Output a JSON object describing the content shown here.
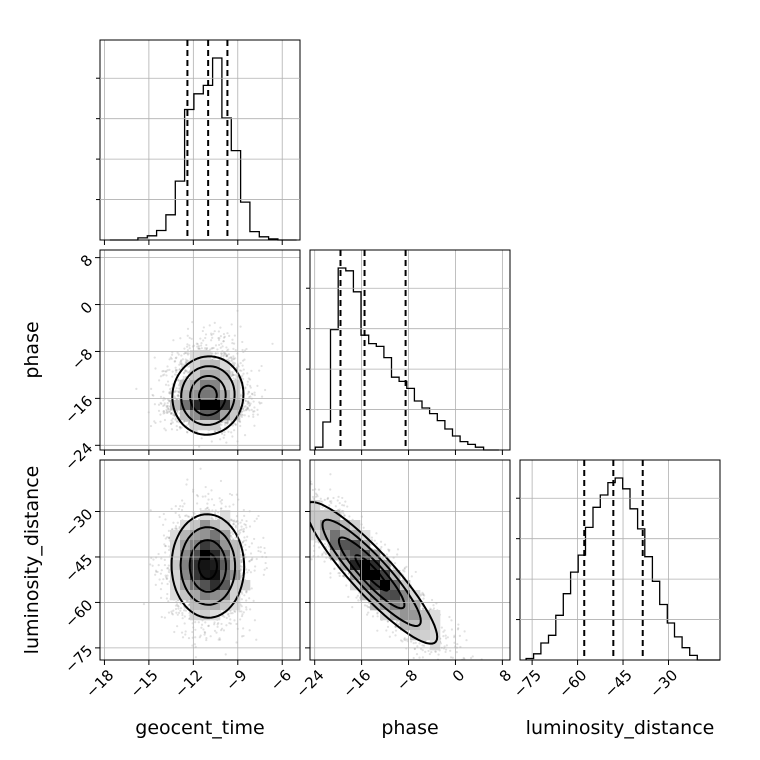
{
  "chart_data": {
    "type": "corner",
    "parameters": [
      "geocent_time",
      "phase",
      "luminosity_distance"
    ],
    "ranges": {
      "geocent_time": [
        -18.3,
        -4.8
      ],
      "phase": [
        -24.8,
        9.3
      ],
      "luminosity_distance": [
        -79,
        -13
      ]
    },
    "ticks": {
      "geocent_time": [
        -18,
        -15,
        -12,
        -9,
        -6
      ],
      "phase": [
        -24,
        -16,
        -8,
        0,
        8
      ],
      "luminosity_distance": [
        -75,
        -60,
        -45,
        -30
      ]
    },
    "grid": true,
    "quantiles": {
      "geocent_time": [
        -12.4,
        -11.0,
        -9.7
      ],
      "phase": [
        -19.6,
        -15.5,
        -8.5
      ],
      "luminosity_distance": [
        -57.8,
        -48.2,
        -38.5
      ]
    },
    "histograms": {
      "geocent_time": {
        "edges": [
          -17.63,
          -17.0,
          -16.37,
          -15.74,
          -15.11,
          -14.48,
          -13.85,
          -13.22,
          -12.59,
          -11.96,
          -11.33,
          -10.7,
          -10.07,
          -9.44,
          -8.81,
          -8.18,
          -7.55,
          -6.92,
          -6.29,
          -5.66,
          -5.03
        ],
        "counts": [
          0,
          0,
          0,
          2,
          4,
          9,
          24,
          56,
          124,
          139,
          147,
          173,
          116,
          85,
          36,
          8,
          3,
          1,
          0,
          0
        ]
      },
      "phase": {
        "edges": [
          -23.9,
          -22.6,
          -21.3,
          -20.0,
          -18.7,
          -17.4,
          -16.1,
          -14.8,
          -13.5,
          -12.2,
          -10.9,
          -9.6,
          -8.3,
          -7.0,
          -5.7,
          -4.4,
          -3.1,
          -1.8,
          -0.5,
          0.8,
          2.1,
          3.4,
          4.8,
          6.0,
          7.4
        ],
        "counts": [
          2,
          20,
          86,
          130,
          128,
          113,
          82,
          76,
          74,
          66,
          52,
          49,
          44,
          35,
          30,
          26,
          21,
          15,
          10,
          6,
          4,
          2,
          0,
          0
        ]
      },
      "luminosity_distance": {
        "edges": [
          -77,
          -74.5,
          -72.1,
          -69.6,
          -67.2,
          -64.7,
          -62.3,
          -59.8,
          -57.4,
          -54.9,
          -52.5,
          -50,
          -47.6,
          -45.1,
          -42.7,
          -40.2,
          -37.8,
          -35.3,
          -32.9,
          -30.4,
          -28,
          -25.5,
          -23,
          -20.5,
          -18,
          -15.5,
          -13
        ],
        "counts": [
          1,
          4,
          11,
          16,
          29,
          43,
          57,
          68,
          86,
          99,
          107,
          115,
          118,
          111,
          98,
          85,
          67,
          51,
          36,
          24,
          15,
          8,
          3,
          0,
          0,
          0
        ]
      }
    },
    "scatter_2d": [
      {
        "x": "geocent_time",
        "y": "phase",
        "x_center": -11.0,
        "y_center": -16.5,
        "x_sd": 1.2,
        "y_sd": 3.2,
        "y_skew_up": 6.0
      },
      {
        "x": "geocent_time",
        "y": "luminosity_distance",
        "x_center": -11.0,
        "y_center": -48.0,
        "x_sd": 1.2,
        "y_sd": 8.5
      },
      {
        "x": "phase",
        "y": "luminosity_distance",
        "x_center": -13.0,
        "y_center": -48.0,
        "correlation": "strong-negative"
      }
    ]
  }
}
